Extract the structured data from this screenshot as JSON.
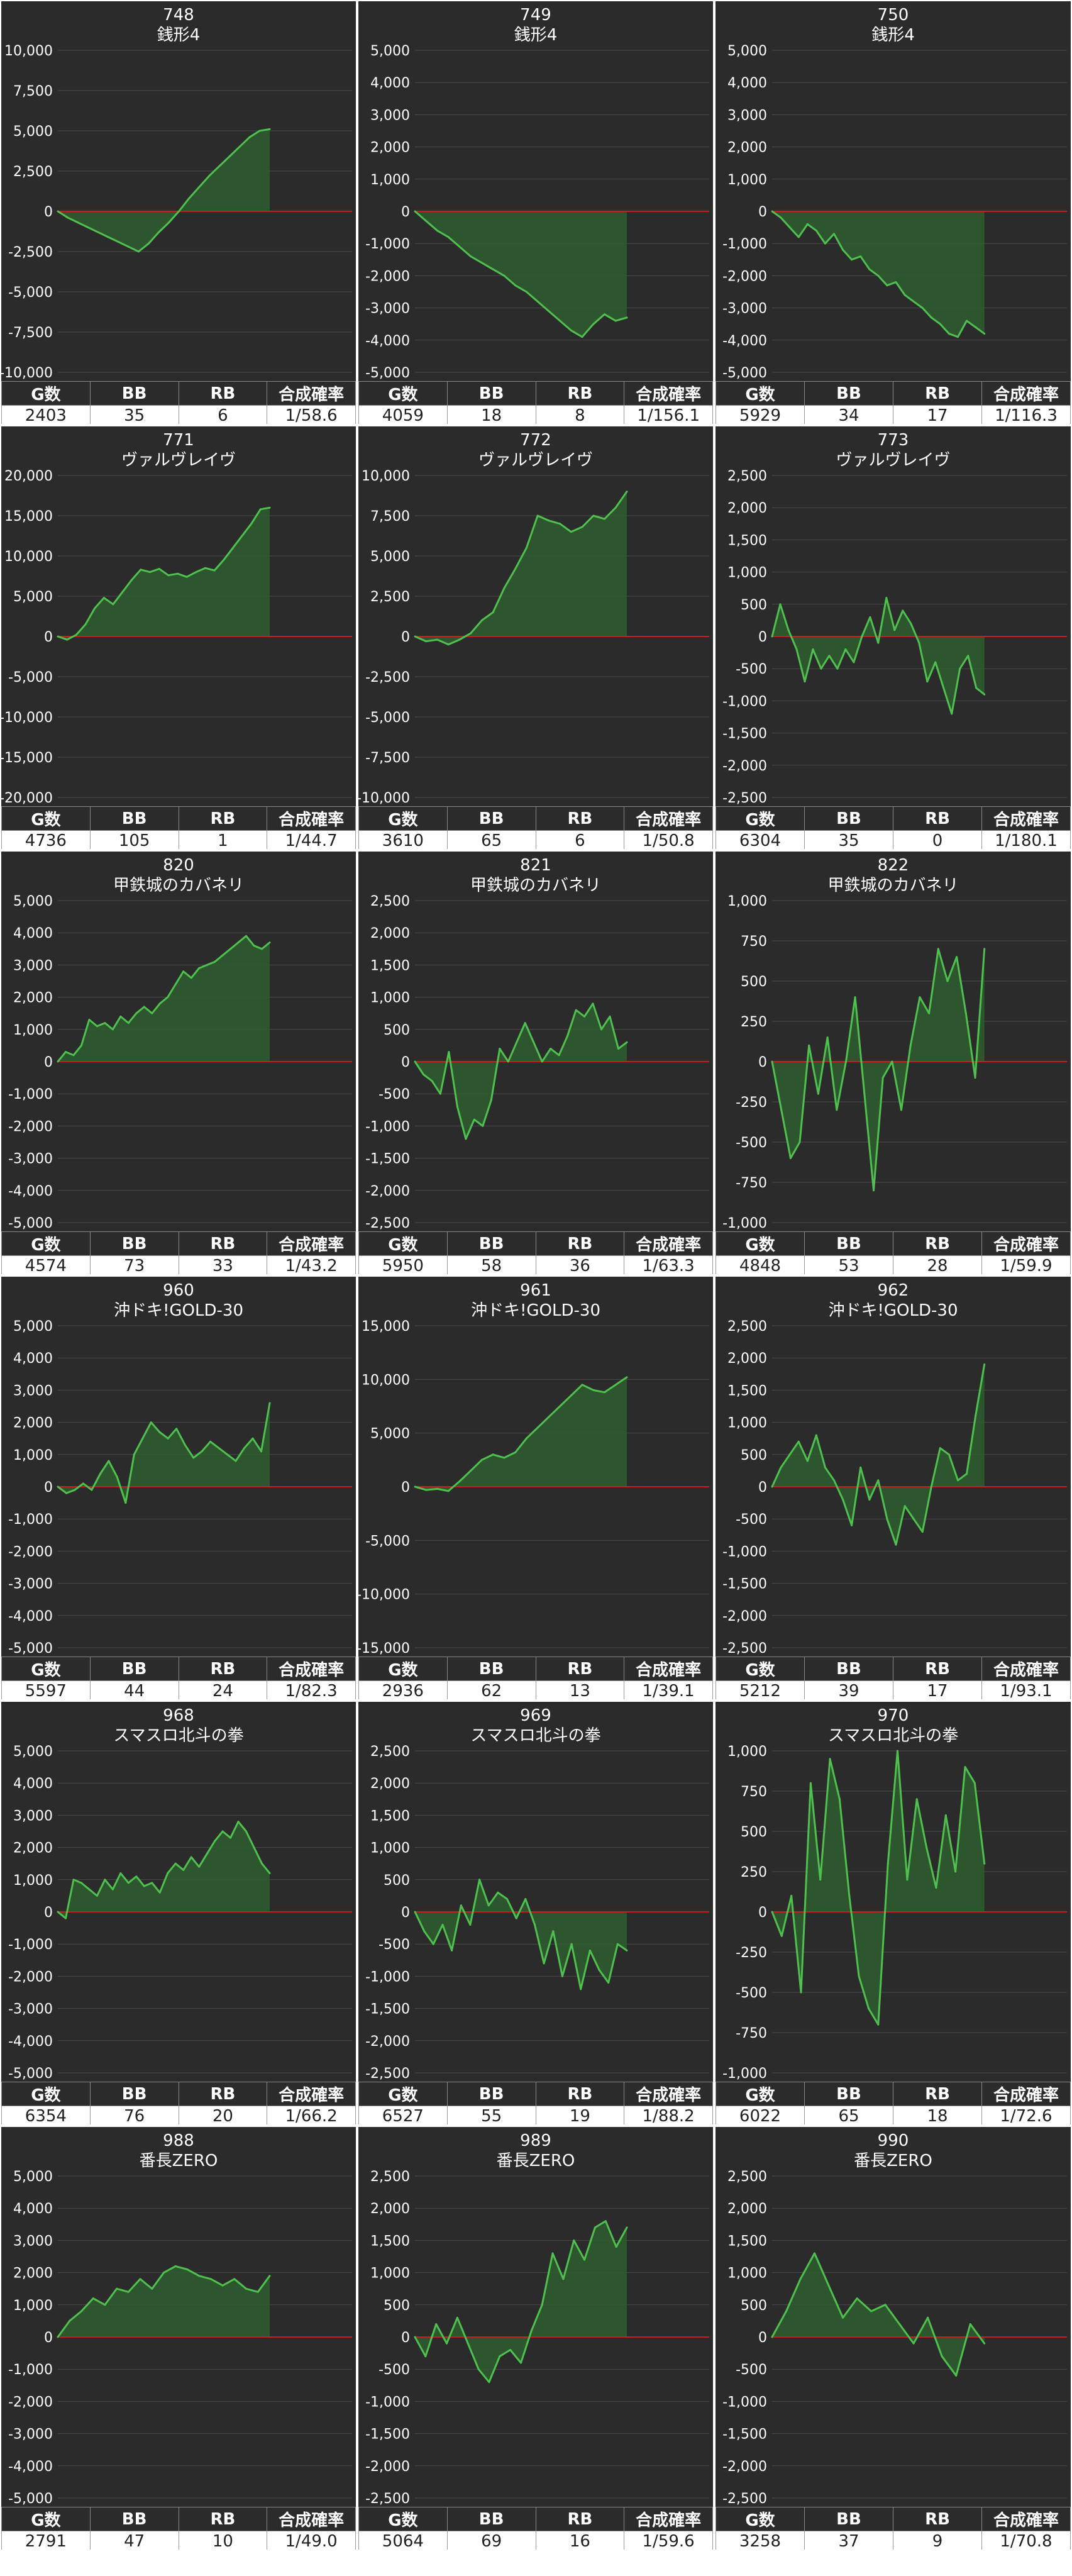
{
  "charts": [
    {
      "id": "748",
      "name": "銭形4",
      "ymax": 10000,
      "step": 2500,
      "ticks": [
        "10,000",
        "7,500",
        "5,000",
        "2,500",
        "0",
        "-2,500",
        "-5,000",
        "-7,500",
        "-10,000"
      ],
      "series": [
        0,
        -400,
        -700,
        -1000,
        -1300,
        -1600,
        -1900,
        -2200,
        -2500,
        -2000,
        -1300,
        -700,
        0,
        800,
        1500,
        2200,
        2800,
        3400,
        4000,
        4600,
        5000,
        5100
      ],
      "stats": {
        "g": "2403",
        "bb": "35",
        "rb": "6",
        "rate": "1/58.6"
      }
    },
    {
      "id": "749",
      "name": "銭形4",
      "ymax": 5000,
      "step": 1000,
      "ticks": [
        "5,000",
        "4,000",
        "3,000",
        "2,000",
        "1,000",
        "0",
        "-1,000",
        "-2,000",
        "-3,000",
        "-4,000",
        "-5,000"
      ],
      "series": [
        0,
        -300,
        -600,
        -800,
        -1100,
        -1400,
        -1600,
        -1800,
        -2000,
        -2300,
        -2500,
        -2800,
        -3100,
        -3400,
        -3700,
        -3900,
        -3500,
        -3200,
        -3400,
        -3300
      ],
      "stats": {
        "g": "4059",
        "bb": "18",
        "rb": "8",
        "rate": "1/156.1"
      }
    },
    {
      "id": "750",
      "name": "銭形4",
      "ymax": 5000,
      "step": 1000,
      "ticks": [
        "5,000",
        "4,000",
        "3,000",
        "2,000",
        "1,000",
        "0",
        "-1,000",
        "-2,000",
        "-3,000",
        "-4,000",
        "-5,000"
      ],
      "series": [
        0,
        -200,
        -500,
        -800,
        -400,
        -600,
        -1000,
        -700,
        -1200,
        -1500,
        -1400,
        -1800,
        -2000,
        -2300,
        -2200,
        -2600,
        -2800,
        -3000,
        -3300,
        -3500,
        -3800,
        -3900,
        -3400,
        -3600,
        -3800
      ],
      "stats": {
        "g": "5929",
        "bb": "34",
        "rb": "17",
        "rate": "1/116.3"
      }
    },
    {
      "id": "771",
      "name": "ヴァルヴレイヴ",
      "ymax": 20000,
      "step": 5000,
      "ticks": [
        "20,000",
        "15,000",
        "10,000",
        "5,000",
        "0",
        "-5,000",
        "-10,000",
        "-15,000",
        "-20,000"
      ],
      "series": [
        0,
        -400,
        200,
        1500,
        3500,
        4800,
        4000,
        5500,
        7000,
        8300,
        8000,
        8400,
        7600,
        7800,
        7400,
        8000,
        8500,
        8200,
        9500,
        11000,
        12500,
        14000,
        15800,
        16000
      ],
      "stats": {
        "g": "4736",
        "bb": "105",
        "rb": "1",
        "rate": "1/44.7"
      }
    },
    {
      "id": "772",
      "name": "ヴァルヴレイヴ",
      "ymax": 10000,
      "step": 2500,
      "ticks": [
        "10,000",
        "7,500",
        "5,000",
        "2,500",
        "0",
        "-2,500",
        "-5,000",
        "-7,500",
        "-10,000"
      ],
      "series": [
        0,
        -300,
        -200,
        -500,
        -200,
        200,
        1000,
        1500,
        3000,
        4200,
        5500,
        7500,
        7200,
        7000,
        6500,
        6800,
        7500,
        7300,
        8000,
        9000
      ],
      "stats": {
        "g": "3610",
        "bb": "65",
        "rb": "6",
        "rate": "1/50.8"
      }
    },
    {
      "id": "773",
      "name": "ヴァルヴレイヴ",
      "ymax": 2500,
      "step": 500,
      "ticks": [
        "2,500",
        "2,000",
        "1,500",
        "1,000",
        "500",
        "0",
        "-500",
        "-1,000",
        "-1,500",
        "-2,000",
        "-2,500"
      ],
      "series": [
        0,
        500,
        100,
        -200,
        -700,
        -200,
        -500,
        -300,
        -500,
        -200,
        -400,
        0,
        300,
        -100,
        600,
        100,
        400,
        200,
        -100,
        -700,
        -400,
        -800,
        -1200,
        -500,
        -300,
        -800,
        -900
      ],
      "stats": {
        "g": "6304",
        "bb": "35",
        "rb": "0",
        "rate": "1/180.1"
      }
    },
    {
      "id": "820",
      "name": "甲鉄城のカバネリ",
      "ymax": 5000,
      "step": 1000,
      "ticks": [
        "5,000",
        "4,000",
        "3,000",
        "2,000",
        "1,000",
        "0",
        "-1,000",
        "-2,000",
        "-3,000",
        "-4,000",
        "-5,000"
      ],
      "series": [
        0,
        300,
        200,
        500,
        1300,
        1100,
        1200,
        1000,
        1400,
        1200,
        1500,
        1700,
        1500,
        1800,
        2000,
        2400,
        2800,
        2600,
        2900,
        3000,
        3100,
        3300,
        3500,
        3700,
        3900,
        3600,
        3500,
        3700
      ],
      "stats": {
        "g": "4574",
        "bb": "73",
        "rb": "33",
        "rate": "1/43.2"
      }
    },
    {
      "id": "821",
      "name": "甲鉄城のカバネリ",
      "ymax": 2500,
      "step": 500,
      "ticks": [
        "2,500",
        "2,000",
        "1,500",
        "1,000",
        "500",
        "0",
        "-500",
        "-1,000",
        "-1,500",
        "-2,000",
        "-2,500"
      ],
      "series": [
        0,
        -200,
        -300,
        -500,
        150,
        -700,
        -1200,
        -900,
        -1000,
        -600,
        200,
        0,
        300,
        600,
        300,
        0,
        200,
        100,
        400,
        800,
        700,
        900,
        500,
        700,
        200,
        300
      ],
      "stats": {
        "g": "5950",
        "bb": "58",
        "rb": "36",
        "rate": "1/63.3"
      }
    },
    {
      "id": "822",
      "name": "甲鉄城のカバネリ",
      "ymax": 1000,
      "step": 250,
      "ticks": [
        "1,000",
        "750",
        "500",
        "250",
        "0",
        "-250",
        "-500",
        "-750",
        "-1,000"
      ],
      "series": [
        0,
        -300,
        -600,
        -500,
        100,
        -200,
        150,
        -300,
        0,
        400,
        -200,
        -800,
        -100,
        0,
        -300,
        100,
        400,
        300,
        700,
        500,
        650,
        300,
        -100,
        700
      ],
      "stats": {
        "g": "4848",
        "bb": "53",
        "rb": "28",
        "rate": "1/59.9"
      }
    },
    {
      "id": "960",
      "name": "沖ドキ!GOLD-30",
      "ymax": 5000,
      "step": 1000,
      "ticks": [
        "5,000",
        "4,000",
        "3,000",
        "2,000",
        "1,000",
        "0",
        "-1,000",
        "-2,000",
        "-3,000",
        "-4,000",
        "-5,000"
      ],
      "series": [
        0,
        -200,
        -100,
        100,
        -100,
        400,
        800,
        300,
        -500,
        1000,
        1500,
        2000,
        1700,
        1500,
        1800,
        1300,
        900,
        1100,
        1400,
        1200,
        1000,
        800,
        1200,
        1500,
        1100,
        2600
      ],
      "stats": {
        "g": "5597",
        "bb": "44",
        "rb": "24",
        "rate": "1/82.3"
      }
    },
    {
      "id": "961",
      "name": "沖ドキ!GOLD-30",
      "ymax": 15000,
      "step": 5000,
      "ticks": [
        "15,000",
        "10,000",
        "5,000",
        "0",
        "-5,000",
        "-10,000",
        "-15,000"
      ],
      "series": [
        0,
        -300,
        -200,
        -400,
        500,
        1500,
        2500,
        3000,
        2700,
        3200,
        4500,
        5500,
        6500,
        7500,
        8500,
        9500,
        9000,
        8800,
        9500,
        10200
      ],
      "stats": {
        "g": "2936",
        "bb": "62",
        "rb": "13",
        "rate": "1/39.1"
      }
    },
    {
      "id": "962",
      "name": "沖ドキ!GOLD-30",
      "ymax": 2500,
      "step": 500,
      "ticks": [
        "2,500",
        "2,000",
        "1,500",
        "1,000",
        "500",
        "0",
        "-500",
        "-1,000",
        "-1,500",
        "-2,000",
        "-2,500"
      ],
      "series": [
        0,
        300,
        500,
        700,
        400,
        800,
        300,
        100,
        -200,
        -600,
        300,
        -200,
        100,
        -500,
        -900,
        -300,
        -500,
        -700,
        0,
        600,
        500,
        100,
        200,
        1100,
        1900
      ],
      "stats": {
        "g": "5212",
        "bb": "39",
        "rb": "17",
        "rate": "1/93.1"
      }
    },
    {
      "id": "968",
      "name": "スマスロ北斗の拳",
      "ymax": 5000,
      "step": 1000,
      "ticks": [
        "5,000",
        "4,000",
        "3,000",
        "2,000",
        "1,000",
        "0",
        "-1,000",
        "-2,000",
        "-3,000",
        "-4,000",
        "-5,000"
      ],
      "series": [
        0,
        -200,
        1000,
        900,
        700,
        500,
        1000,
        700,
        1200,
        900,
        1100,
        800,
        900,
        600,
        1200,
        1500,
        1300,
        1700,
        1400,
        1800,
        2200,
        2500,
        2300,
        2800,
        2500,
        2000,
        1500,
        1200
      ],
      "stats": {
        "g": "6354",
        "bb": "76",
        "rb": "20",
        "rate": "1/66.2"
      }
    },
    {
      "id": "969",
      "name": "スマスロ北斗の拳",
      "ymax": 2500,
      "step": 500,
      "ticks": [
        "2,500",
        "2,000",
        "1,500",
        "1,000",
        "500",
        "0",
        "-500",
        "-1,000",
        "-1,500",
        "-2,000",
        "-2,500"
      ],
      "series": [
        0,
        -300,
        -500,
        -200,
        -600,
        100,
        -200,
        500,
        100,
        300,
        200,
        -100,
        200,
        -200,
        -800,
        -300,
        -1000,
        -500,
        -1200,
        -600,
        -900,
        -1100,
        -500,
        -600
      ],
      "stats": {
        "g": "6527",
        "bb": "55",
        "rb": "19",
        "rate": "1/88.2"
      }
    },
    {
      "id": "970",
      "name": "スマスロ北斗の拳",
      "ymax": 1000,
      "step": 250,
      "ticks": [
        "1,000",
        "750",
        "500",
        "250",
        "0",
        "-250",
        "-500",
        "-750",
        "-1,000"
      ],
      "series": [
        0,
        -150,
        100,
        -500,
        800,
        200,
        950,
        700,
        100,
        -400,
        -600,
        -700,
        300,
        1000,
        200,
        700,
        400,
        150,
        600,
        250,
        900,
        800,
        300
      ],
      "stats": {
        "g": "6022",
        "bb": "65",
        "rb": "18",
        "rate": "1/72.6"
      }
    },
    {
      "id": "988",
      "name": "番長ZERO",
      "ymax": 5000,
      "step": 1000,
      "ticks": [
        "5,000",
        "4,000",
        "3,000",
        "2,000",
        "1,000",
        "0",
        "-1,000",
        "-2,000",
        "-3,000",
        "-4,000",
        "-5,000"
      ],
      "series": [
        0,
        500,
        800,
        1200,
        1000,
        1500,
        1400,
        1800,
        1500,
        2000,
        2200,
        2100,
        1900,
        1800,
        1600,
        1800,
        1500,
        1400,
        1900
      ],
      "stats": {
        "g": "2791",
        "bb": "47",
        "rb": "10",
        "rate": "1/49.0"
      }
    },
    {
      "id": "989",
      "name": "番長ZERO",
      "ymax": 2500,
      "step": 500,
      "ticks": [
        "2,500",
        "2,000",
        "1,500",
        "1,000",
        "500",
        "0",
        "-500",
        "-1,000",
        "-1,500",
        "-2,000",
        "-2,500"
      ],
      "series": [
        0,
        -300,
        200,
        -100,
        300,
        -100,
        -500,
        -700,
        -300,
        -200,
        -400,
        100,
        500,
        1300,
        900,
        1500,
        1200,
        1700,
        1800,
        1400,
        1700
      ],
      "stats": {
        "g": "5064",
        "bb": "69",
        "rb": "16",
        "rate": "1/59.6"
      }
    },
    {
      "id": "990",
      "name": "番長ZERO",
      "ymax": 2500,
      "step": 500,
      "ticks": [
        "2,500",
        "2,000",
        "1,500",
        "1,000",
        "500",
        "0",
        "-500",
        "-1,000",
        "-1,500",
        "-2,000",
        "-2,500"
      ],
      "series": [
        0,
        400,
        900,
        1300,
        800,
        300,
        600,
        400,
        500,
        200,
        -100,
        300,
        -300,
        -600,
        200,
        -100
      ],
      "stats": {
        "g": "3258",
        "bb": "37",
        "rb": "9",
        "rate": "1/70.8"
      }
    }
  ],
  "labels": {
    "g": "G数",
    "bb": "BB",
    "rb": "RB",
    "rate": "合成確率"
  },
  "colors": {
    "bg": "#2b2b2b",
    "line": "#4fc04f",
    "fill": "#2f5e2f",
    "zero": "#c81e1e",
    "grid": "#4a4a4a"
  }
}
